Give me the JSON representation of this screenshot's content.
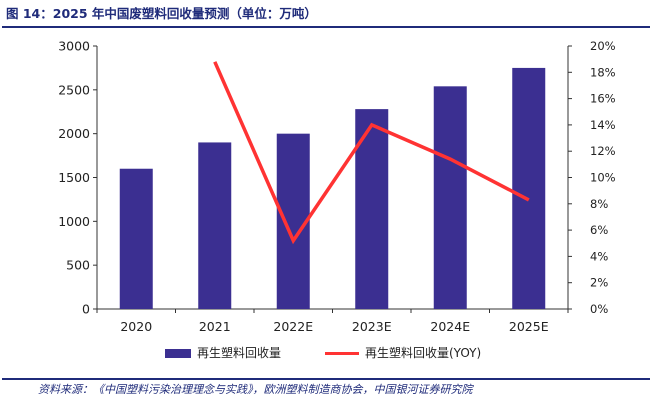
{
  "figure": {
    "title": "图 14：2025 年中国废塑料回收量预测（单位：万吨）",
    "source": "资料来源：《中国塑料污染治理理念与实践》，欧洲塑料制造商协会，中国银河证券研究院"
  },
  "chart_data": {
    "type": "bar+line",
    "categories": [
      "2020",
      "2021",
      "2022E",
      "2023E",
      "2024E",
      "2025E"
    ],
    "series": [
      {
        "name": "再生塑料回收量",
        "type": "bar",
        "axis": "left",
        "values": [
          1600,
          1900,
          2000,
          2280,
          2540,
          2750
        ],
        "color": "#3b2f91"
      },
      {
        "name": "再生塑料回收量(YOY)",
        "type": "line",
        "axis": "right",
        "unit": "%",
        "values": [
          null,
          18.8,
          5.2,
          14.0,
          11.4,
          8.3
        ],
        "color": "#ff3333"
      }
    ],
    "left_axis": {
      "ylim": [
        0,
        3000
      ],
      "ticks": [
        "0",
        "500",
        "1000",
        "1500",
        "2000",
        "2500",
        "3000"
      ]
    },
    "right_axis": {
      "ylim": [
        0,
        20
      ],
      "ticks": [
        "0%",
        "2%",
        "4%",
        "6%",
        "8%",
        "10%",
        "12%",
        "14%",
        "16%",
        "18%",
        "20%"
      ]
    },
    "legend_position": "bottom-center",
    "grid": false
  }
}
